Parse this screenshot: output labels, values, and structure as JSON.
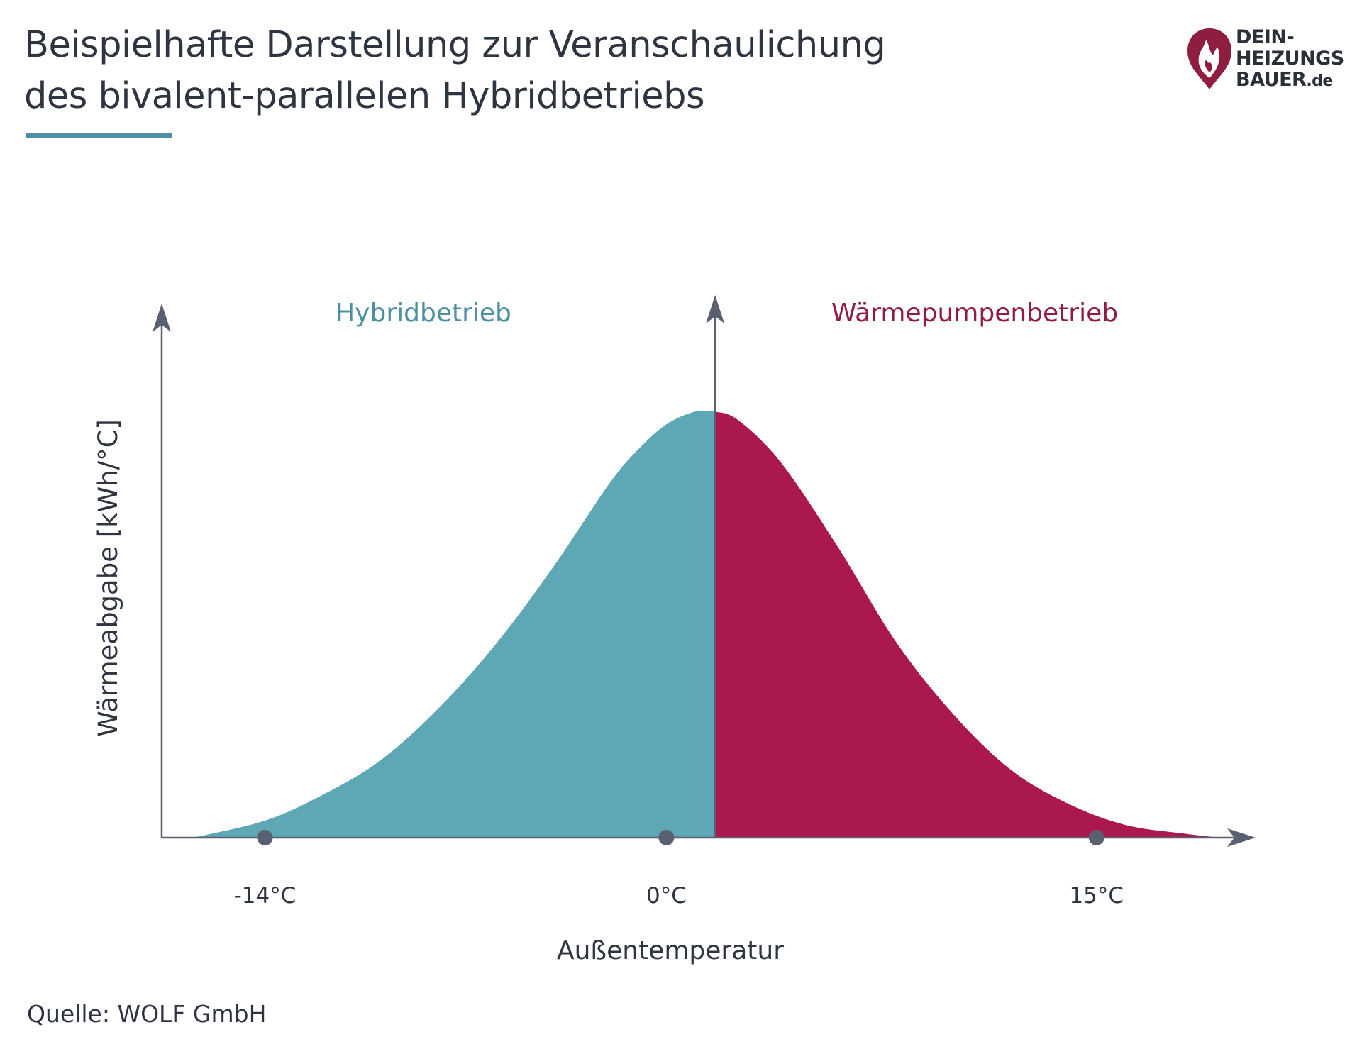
{
  "title_lines": [
    "Beispielhafte Darstellung zur Veranschaulichung",
    "des bivalent-parallelen Hybridbetriebs"
  ],
  "logo": {
    "line1": "DEIN-",
    "line2": "HEIZUNGS",
    "line3": "BAUER",
    "suffix": ".de",
    "icon": "flame-drop-icon",
    "color": "#8f1d3f"
  },
  "source": "Quelle: WOLF GmbH",
  "chart_data": {
    "type": "area",
    "title": "",
    "xlabel": "Außentemperatur",
    "ylabel": "Wärmeabgabe [kWh/°C]",
    "x_ticks": [
      {
        "value": -14,
        "label": "-14°C"
      },
      {
        "value": 0,
        "label": "0°C"
      },
      {
        "value": 15,
        "label": "15°C"
      }
    ],
    "xlim": [
      -17.6,
      20.3
    ],
    "ylim": [
      0,
      1.25
    ],
    "y_ticks_shown": false,
    "grid": false,
    "split_x": 1.7,
    "regions": [
      {
        "name": "Hybridbetrieb",
        "x_range": [
          -17.6,
          1.7
        ],
        "color": "#5ea8b6"
      },
      {
        "name": "Wärmepumpenbetrieb",
        "x_range": [
          1.7,
          20.3
        ],
        "color": "#ab1850"
      }
    ],
    "series": [
      {
        "name": "Wärmeabgabe",
        "x": [
          -16.5,
          -14,
          -12,
          -10,
          -8,
          -6,
          -4,
          -2,
          -1,
          0,
          1,
          1.7,
          2.5,
          4,
          6,
          8,
          10,
          12,
          14,
          16,
          18,
          19.3
        ],
        "y": [
          0.0,
          0.04,
          0.1,
          0.18,
          0.3,
          0.45,
          0.63,
          0.83,
          0.91,
          0.97,
          1.0,
          1.0,
          0.98,
          0.88,
          0.68,
          0.46,
          0.29,
          0.16,
          0.08,
          0.03,
          0.01,
          0.0
        ]
      }
    ],
    "markers_x": [
      -14,
      0,
      15
    ],
    "colors": {
      "axis": "#5a6070",
      "marker": "#5a6070"
    }
  }
}
